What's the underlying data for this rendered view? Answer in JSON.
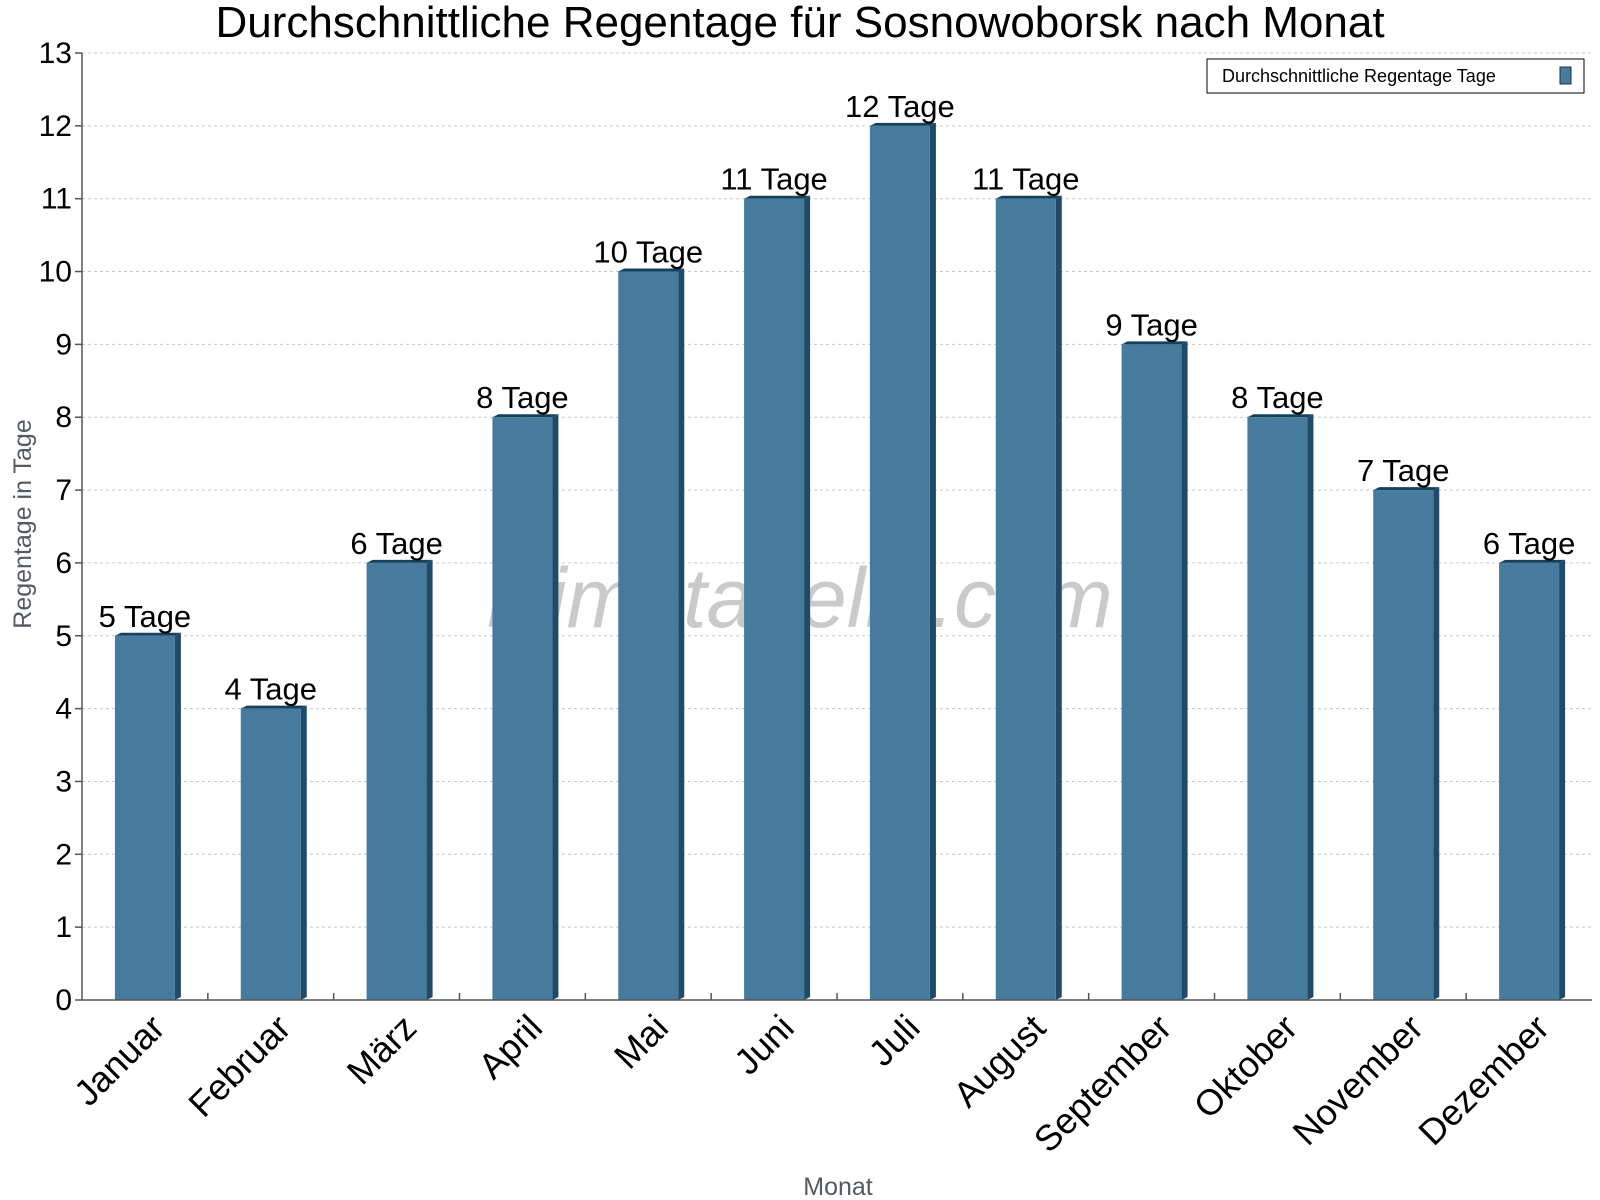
{
  "colors": {
    "bar": "#467b9d",
    "bar_side": "#1f4a6a",
    "bar_top": "#17405e",
    "grid": "#c8c8c8",
    "axis": "#555555"
  },
  "watermark": "klimatabelle.com",
  "chart_data": {
    "type": "bar",
    "title": "Durchschnittliche Regentage für Sosnowoborsk nach Monat",
    "xlabel": "Monat",
    "ylabel": "Regentage in Tage",
    "ylim": [
      0,
      13
    ],
    "yticks": [
      "0",
      "1",
      "2",
      "3",
      "4",
      "5",
      "6",
      "7",
      "8",
      "9",
      "10",
      "11",
      "12",
      "13"
    ],
    "grid": true,
    "legend_position": "top-right",
    "categories": [
      "Januar",
      "Februar",
      "März",
      "April",
      "Mai",
      "Juni",
      "Juli",
      "August",
      "September",
      "Oktober",
      "November",
      "Dezember"
    ],
    "series": [
      {
        "name": "Durchschnittliche Regentage Tage",
        "values": [
          5,
          4,
          6,
          8,
          10,
          11,
          12,
          11,
          9,
          8,
          7,
          6
        ],
        "labels": [
          "5 Tage",
          "4 Tage",
          "6 Tage",
          "8 Tage",
          "10 Tage",
          "11 Tage",
          "12 Tage",
          "11 Tage",
          "9 Tage",
          "8 Tage",
          "7 Tage",
          "6 Tage"
        ]
      }
    ]
  }
}
